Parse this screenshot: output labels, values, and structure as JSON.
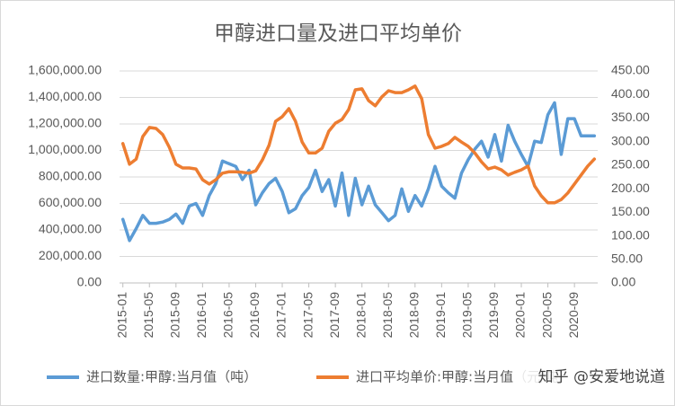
{
  "chart_data": {
    "type": "line",
    "title": "甲醇进口量及进口平均单价",
    "categories": [
      "2015-01",
      null,
      null,
      null,
      "2015-05",
      null,
      null,
      null,
      "2015-09",
      null,
      null,
      null,
      "2016-01",
      null,
      null,
      null,
      "2016-05",
      null,
      null,
      null,
      "2016-09",
      null,
      null,
      null,
      "2017-01",
      null,
      null,
      null,
      "2017-05",
      null,
      null,
      null,
      "2017-09",
      null,
      null,
      null,
      "2018-01",
      null,
      null,
      null,
      "2018-05",
      null,
      null,
      null,
      "2018-09",
      null,
      null,
      null,
      "2019-01",
      null,
      null,
      null,
      "2019-05",
      null,
      null,
      null,
      "2019-09",
      null,
      null,
      null,
      "2020-01",
      null,
      null,
      null,
      "2020-05",
      null,
      null,
      null,
      "2020-09",
      null,
      null,
      null
    ],
    "series": [
      {
        "name": "进口数量:甲醇:当月值（吨）",
        "color": "#5b9bd5",
        "values": [
          480000,
          320000,
          410000,
          510000,
          450000,
          450000,
          460000,
          480000,
          520000,
          450000,
          580000,
          600000,
          510000,
          660000,
          750000,
          920000,
          900000,
          880000,
          780000,
          850000,
          590000,
          680000,
          750000,
          790000,
          690000,
          530000,
          560000,
          660000,
          720000,
          850000,
          690000,
          780000,
          580000,
          830000,
          510000,
          790000,
          590000,
          730000,
          590000,
          530000,
          470000,
          510000,
          710000,
          540000,
          660000,
          580000,
          710000,
          880000,
          730000,
          680000,
          640000,
          830000,
          930000,
          1010000,
          1070000,
          950000,
          1120000,
          920000,
          1190000,
          1070000,
          970000,
          880000,
          1070000,
          1060000,
          1270000,
          1360000,
          970000,
          1240000,
          1240000,
          1110000,
          1110000,
          1110000
        ]
      },
      {
        "name": "进口平均单价:甲醇:当月值（元/吨）",
        "color": "#ed7d31",
        "axis": "y2",
        "values": [
          296,
          252,
          263,
          311,
          330,
          328,
          315,
          288,
          252,
          244,
          244,
          242,
          219,
          210,
          219,
          233,
          236,
          236,
          235,
          233,
          238,
          261,
          292,
          343,
          353,
          370,
          343,
          299,
          276,
          276,
          286,
          322,
          339,
          347,
          368,
          410,
          412,
          387,
          376,
          395,
          408,
          404,
          404,
          410,
          418,
          391,
          315,
          286,
          290,
          296,
          309,
          299,
          290,
          276,
          257,
          242,
          246,
          240,
          229,
          235,
          240,
          248,
          206,
          185,
          170,
          170,
          177,
          191,
          210,
          229,
          248,
          263
        ]
      }
    ],
    "ylim": [
      0,
      1600000
    ],
    "yticks": [
      {
        "value": 0,
        "label": "0.00"
      },
      {
        "value": 200000,
        "label": "200,000.00"
      },
      {
        "value": 400000,
        "label": "400,000.00"
      },
      {
        "value": 600000,
        "label": "600,000.00"
      },
      {
        "value": 800000,
        "label": "800,000.00"
      },
      {
        "value": 1000000,
        "label": "1,000,000.00"
      },
      {
        "value": 1200000,
        "label": "1,200,000.00"
      },
      {
        "value": 1400000,
        "label": "1,400,000.00"
      },
      {
        "value": 1600000,
        "label": "1,600,000.00"
      }
    ],
    "y2lim": [
      0,
      450
    ],
    "y2ticks": [
      {
        "value": 0,
        "label": "0.00"
      },
      {
        "value": 50,
        "label": "50.00"
      },
      {
        "value": 100,
        "label": "100.00"
      },
      {
        "value": 150,
        "label": "150.00"
      },
      {
        "value": 200,
        "label": "200.00"
      },
      {
        "value": 250,
        "label": "250.00"
      },
      {
        "value": 300,
        "label": "300.00"
      },
      {
        "value": 350,
        "label": "350.00"
      },
      {
        "value": 400,
        "label": "400.00"
      },
      {
        "value": 450,
        "label": "450.00"
      }
    ],
    "grid": true,
    "legend": "bottom",
    "watermark": "知乎 @安爱地说道"
  }
}
